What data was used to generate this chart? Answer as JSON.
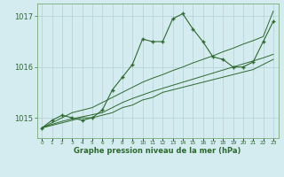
{
  "title": "Graphe pression niveau de la mer (hPa)",
  "x_values": [
    0,
    1,
    2,
    3,
    4,
    5,
    6,
    7,
    8,
    9,
    10,
    11,
    12,
    13,
    14,
    15,
    16,
    17,
    18,
    19,
    20,
    21,
    22,
    23
  ],
  "main_line": [
    1014.8,
    1014.95,
    1015.05,
    1015.0,
    1014.95,
    1015.0,
    1015.15,
    1015.55,
    1015.8,
    1016.05,
    1016.55,
    1016.5,
    1016.5,
    1016.95,
    1017.05,
    1016.75,
    1016.5,
    1016.2,
    1016.15,
    1016.0,
    1016.0,
    1016.1,
    1016.5,
    1016.9
  ],
  "trend1": [
    1014.8,
    1014.85,
    1014.9,
    1014.95,
    1015.0,
    1015.0,
    1015.05,
    1015.1,
    1015.2,
    1015.25,
    1015.35,
    1015.4,
    1015.5,
    1015.55,
    1015.6,
    1015.65,
    1015.7,
    1015.75,
    1015.8,
    1015.85,
    1015.9,
    1015.95,
    1016.05,
    1016.15
  ],
  "trend2": [
    1014.8,
    1014.87,
    1014.93,
    1014.98,
    1015.02,
    1015.06,
    1015.1,
    1015.2,
    1015.3,
    1015.38,
    1015.45,
    1015.52,
    1015.58,
    1015.64,
    1015.7,
    1015.76,
    1015.82,
    1015.88,
    1015.94,
    1016.0,
    1016.06,
    1016.12,
    1016.18,
    1016.25
  ],
  "trend3": [
    1014.8,
    1014.9,
    1015.0,
    1015.1,
    1015.15,
    1015.2,
    1015.3,
    1015.4,
    1015.5,
    1015.6,
    1015.7,
    1015.78,
    1015.85,
    1015.93,
    1016.0,
    1016.08,
    1016.15,
    1016.22,
    1016.3,
    1016.37,
    1016.45,
    1016.52,
    1016.6,
    1017.1
  ],
  "line_color": "#2d6a2d",
  "bg_color": "#d4ecf0",
  "grid_color": "#b2d0d8",
  "border_color": "#7aaa7a",
  "ylim": [
    1014.6,
    1017.25
  ],
  "yticks": [
    1015,
    1016,
    1017
  ]
}
